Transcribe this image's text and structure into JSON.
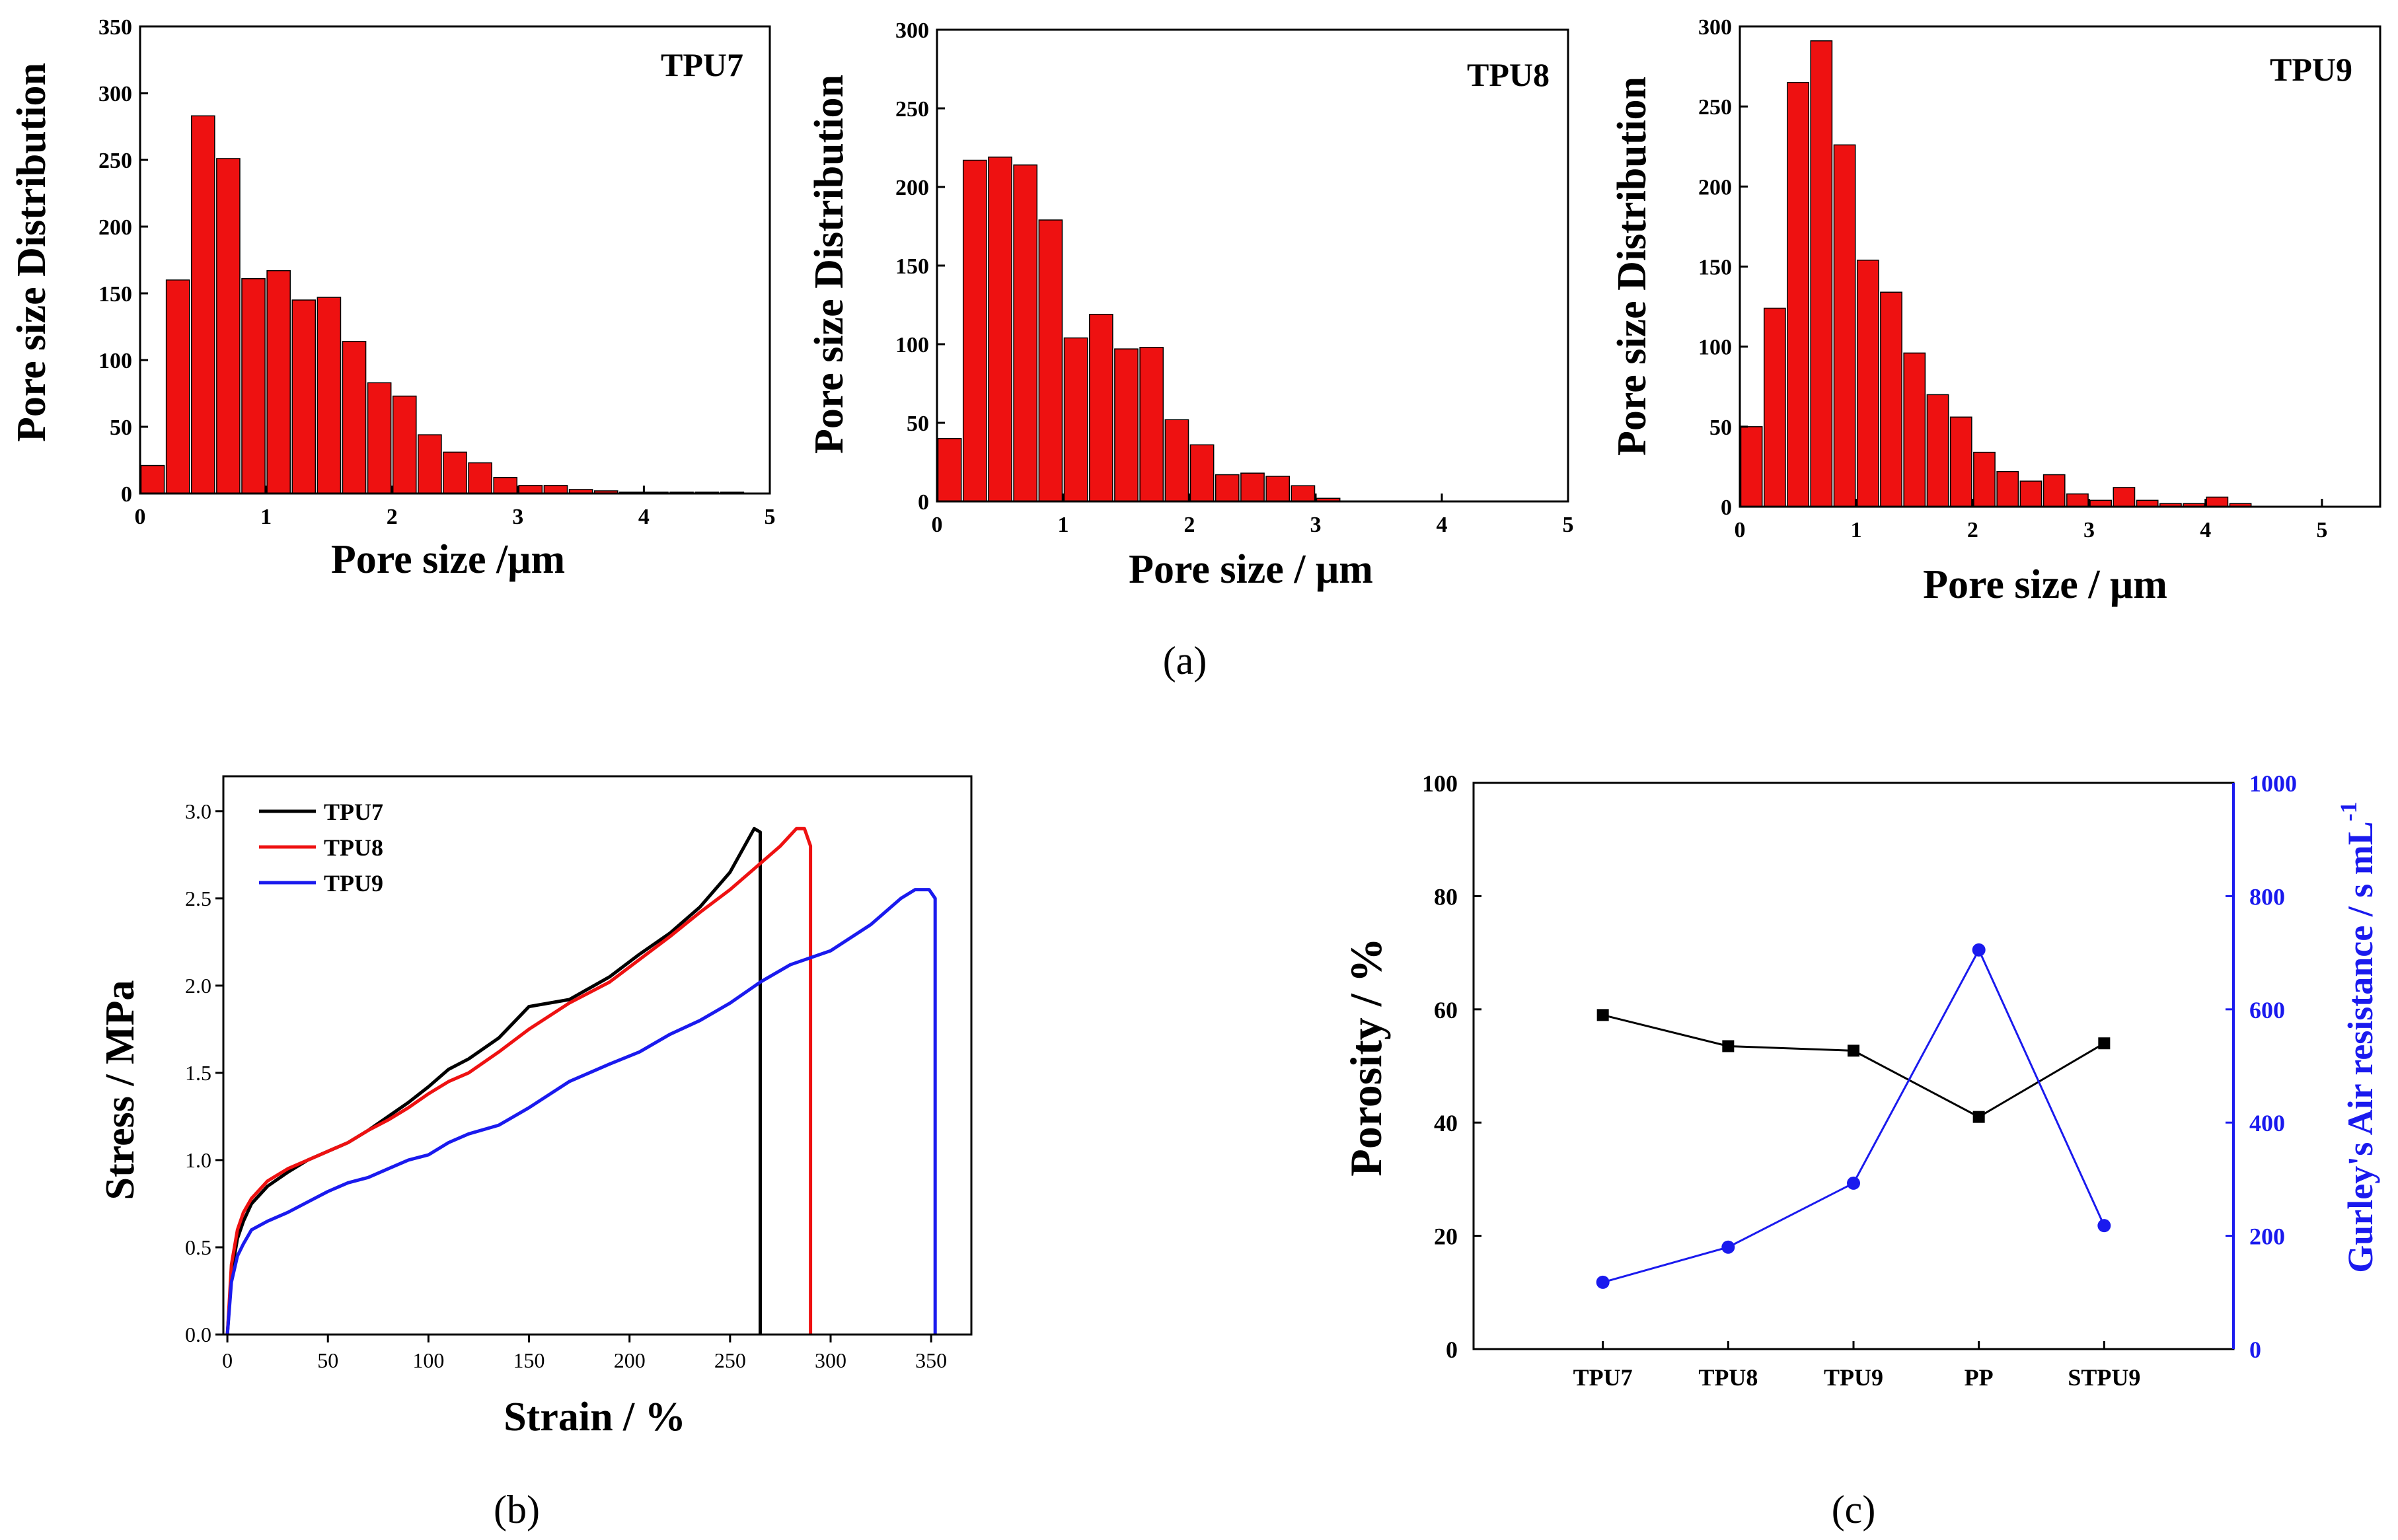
{
  "panel_labels": [
    "(a)",
    "(b)",
    "(c)"
  ],
  "chart_data": [
    {
      "type": "bar",
      "panel": "a",
      "title": "TPU7",
      "xlabel": "Pore size /μm",
      "ylabel": "Pore size Distribution",
      "xlim": [
        0,
        5
      ],
      "ylim": [
        0,
        350
      ],
      "xticks": [
        0,
        1,
        2,
        3,
        4,
        5
      ],
      "yticks": [
        0,
        50,
        100,
        150,
        200,
        250,
        300,
        350
      ],
      "bin_width": 0.2,
      "bins": [
        0.1,
        0.3,
        0.5,
        0.7,
        0.9,
        1.1,
        1.3,
        1.5,
        1.7,
        1.9,
        2.1,
        2.3,
        2.5,
        2.7,
        2.9,
        3.1,
        3.3,
        3.5,
        3.7,
        3.9,
        4.1,
        4.3,
        4.5,
        4.7,
        4.9
      ],
      "values": [
        21,
        160,
        283,
        251,
        161,
        167,
        145,
        147,
        114,
        83,
        73,
        44,
        31,
        23,
        12,
        6,
        6,
        3,
        2,
        1,
        1,
        1,
        1,
        1,
        0
      ],
      "color": "#ee1111"
    },
    {
      "type": "bar",
      "panel": "a",
      "title": "TPU8",
      "xlabel": "Pore size / μm",
      "ylabel": "Pore size Distribution",
      "xlim": [
        0,
        5
      ],
      "ylim": [
        0,
        300
      ],
      "xticks": [
        0,
        1,
        2,
        3,
        4,
        5
      ],
      "yticks": [
        0,
        50,
        100,
        150,
        200,
        250,
        300
      ],
      "bin_width": 0.2,
      "bins": [
        0.1,
        0.3,
        0.5,
        0.7,
        0.9,
        1.1,
        1.3,
        1.5,
        1.7,
        1.9,
        2.1,
        2.3,
        2.5,
        2.7,
        2.9,
        3.1
      ],
      "values": [
        40,
        217,
        219,
        214,
        179,
        104,
        119,
        97,
        98,
        52,
        36,
        17,
        18,
        16,
        10,
        2
      ],
      "color": "#ee1111"
    },
    {
      "type": "bar",
      "panel": "a",
      "title": "TPU9",
      "xlabel": "Pore size / μm",
      "ylabel": "Pore size Distribution",
      "xlim": [
        0,
        5.5
      ],
      "ylim": [
        0,
        300
      ],
      "xticks": [
        0,
        1,
        2,
        3,
        4,
        5
      ],
      "yticks": [
        0,
        50,
        100,
        150,
        200,
        250,
        300
      ],
      "bin_width": 0.2,
      "bins": [
        0.1,
        0.3,
        0.5,
        0.7,
        0.9,
        1.1,
        1.3,
        1.5,
        1.7,
        1.9,
        2.1,
        2.3,
        2.5,
        2.7,
        2.9,
        3.1,
        3.3,
        3.5,
        3.7,
        3.9,
        4.1,
        4.3
      ],
      "values": [
        50,
        124,
        265,
        291,
        226,
        154,
        134,
        96,
        70,
        56,
        34,
        22,
        16,
        20,
        8,
        4,
        12,
        4,
        2,
        2,
        6,
        2
      ],
      "color": "#ee1111"
    },
    {
      "type": "line",
      "panel": "b",
      "xlabel": "Strain / %",
      "ylabel": "Stress / MPa",
      "xlim": [
        -2,
        370
      ],
      "ylim": [
        0,
        3.2
      ],
      "xticks": [
        0,
        50,
        100,
        150,
        200,
        250,
        300,
        350
      ],
      "yticks": [
        0.0,
        0.5,
        1.0,
        1.5,
        2.0,
        2.5,
        3.0
      ],
      "legend_position": "top-left",
      "series": [
        {
          "name": "TPU7",
          "color": "#000000",
          "x": [
            0,
            2,
            5,
            8,
            12,
            20,
            30,
            40,
            50,
            60,
            70,
            80,
            90,
            100,
            110,
            120,
            135,
            150,
            170,
            190,
            205,
            220,
            235,
            250,
            262,
            265,
            265
          ],
          "y": [
            0,
            0.35,
            0.55,
            0.65,
            0.75,
            0.85,
            0.93,
            1.0,
            1.05,
            1.1,
            1.17,
            1.25,
            1.33,
            1.42,
            1.52,
            1.58,
            1.7,
            1.88,
            1.92,
            2.05,
            2.18,
            2.3,
            2.45,
            2.65,
            2.9,
            2.88,
            0
          ]
        },
        {
          "name": "TPU8",
          "color": "#ee1111",
          "x": [
            0,
            2,
            5,
            8,
            12,
            20,
            30,
            40,
            50,
            60,
            70,
            80,
            90,
            100,
            110,
            120,
            135,
            150,
            170,
            190,
            205,
            220,
            235,
            250,
            265,
            275,
            283,
            287,
            290,
            290
          ],
          "y": [
            0,
            0.4,
            0.6,
            0.7,
            0.78,
            0.88,
            0.95,
            1.0,
            1.05,
            1.1,
            1.17,
            1.23,
            1.3,
            1.38,
            1.45,
            1.5,
            1.62,
            1.75,
            1.9,
            2.02,
            2.15,
            2.28,
            2.42,
            2.55,
            2.7,
            2.8,
            2.9,
            2.9,
            2.8,
            0
          ]
        },
        {
          "name": "TPU9",
          "color": "#1a1aee",
          "x": [
            0,
            2,
            5,
            8,
            12,
            20,
            30,
            40,
            50,
            60,
            70,
            80,
            90,
            100,
            110,
            120,
            135,
            150,
            170,
            190,
            205,
            220,
            235,
            250,
            265,
            280,
            300,
            320,
            335,
            342,
            349,
            352,
            352
          ],
          "y": [
            0,
            0.3,
            0.45,
            0.52,
            0.6,
            0.65,
            0.7,
            0.76,
            0.82,
            0.87,
            0.9,
            0.95,
            1.0,
            1.03,
            1.1,
            1.15,
            1.2,
            1.3,
            1.45,
            1.55,
            1.62,
            1.72,
            1.8,
            1.9,
            2.02,
            2.12,
            2.2,
            2.35,
            2.5,
            2.55,
            2.55,
            2.5,
            0
          ]
        }
      ]
    },
    {
      "type": "line",
      "panel": "c",
      "categories": [
        "TPU7",
        "TPU8",
        "TPU9",
        "PP",
        "STPU9"
      ],
      "ylabel": "Porosity / %",
      "ylim": [
        0,
        100
      ],
      "yticks": [
        0,
        20,
        40,
        60,
        80,
        100
      ],
      "y2label": "Gurley's Air resistance / s mL⁻¹",
      "y2label_main": "Gurley's Air resistance / s mL",
      "y2label_sup": "-1",
      "y2lim": [
        0,
        1000
      ],
      "y2ticks": [
        0,
        200,
        400,
        600,
        800,
        1000
      ],
      "series": [
        {
          "name": "Porosity",
          "axis": "left",
          "marker": "square",
          "color": "#000000",
          "values": [
            59,
            53.5,
            52.7,
            41,
            54
          ]
        },
        {
          "name": "Gurley's Air resistance",
          "axis": "right",
          "marker": "circle",
          "color": "#1a1aee",
          "values": [
            118,
            180,
            293,
            705,
            218
          ]
        }
      ]
    }
  ]
}
